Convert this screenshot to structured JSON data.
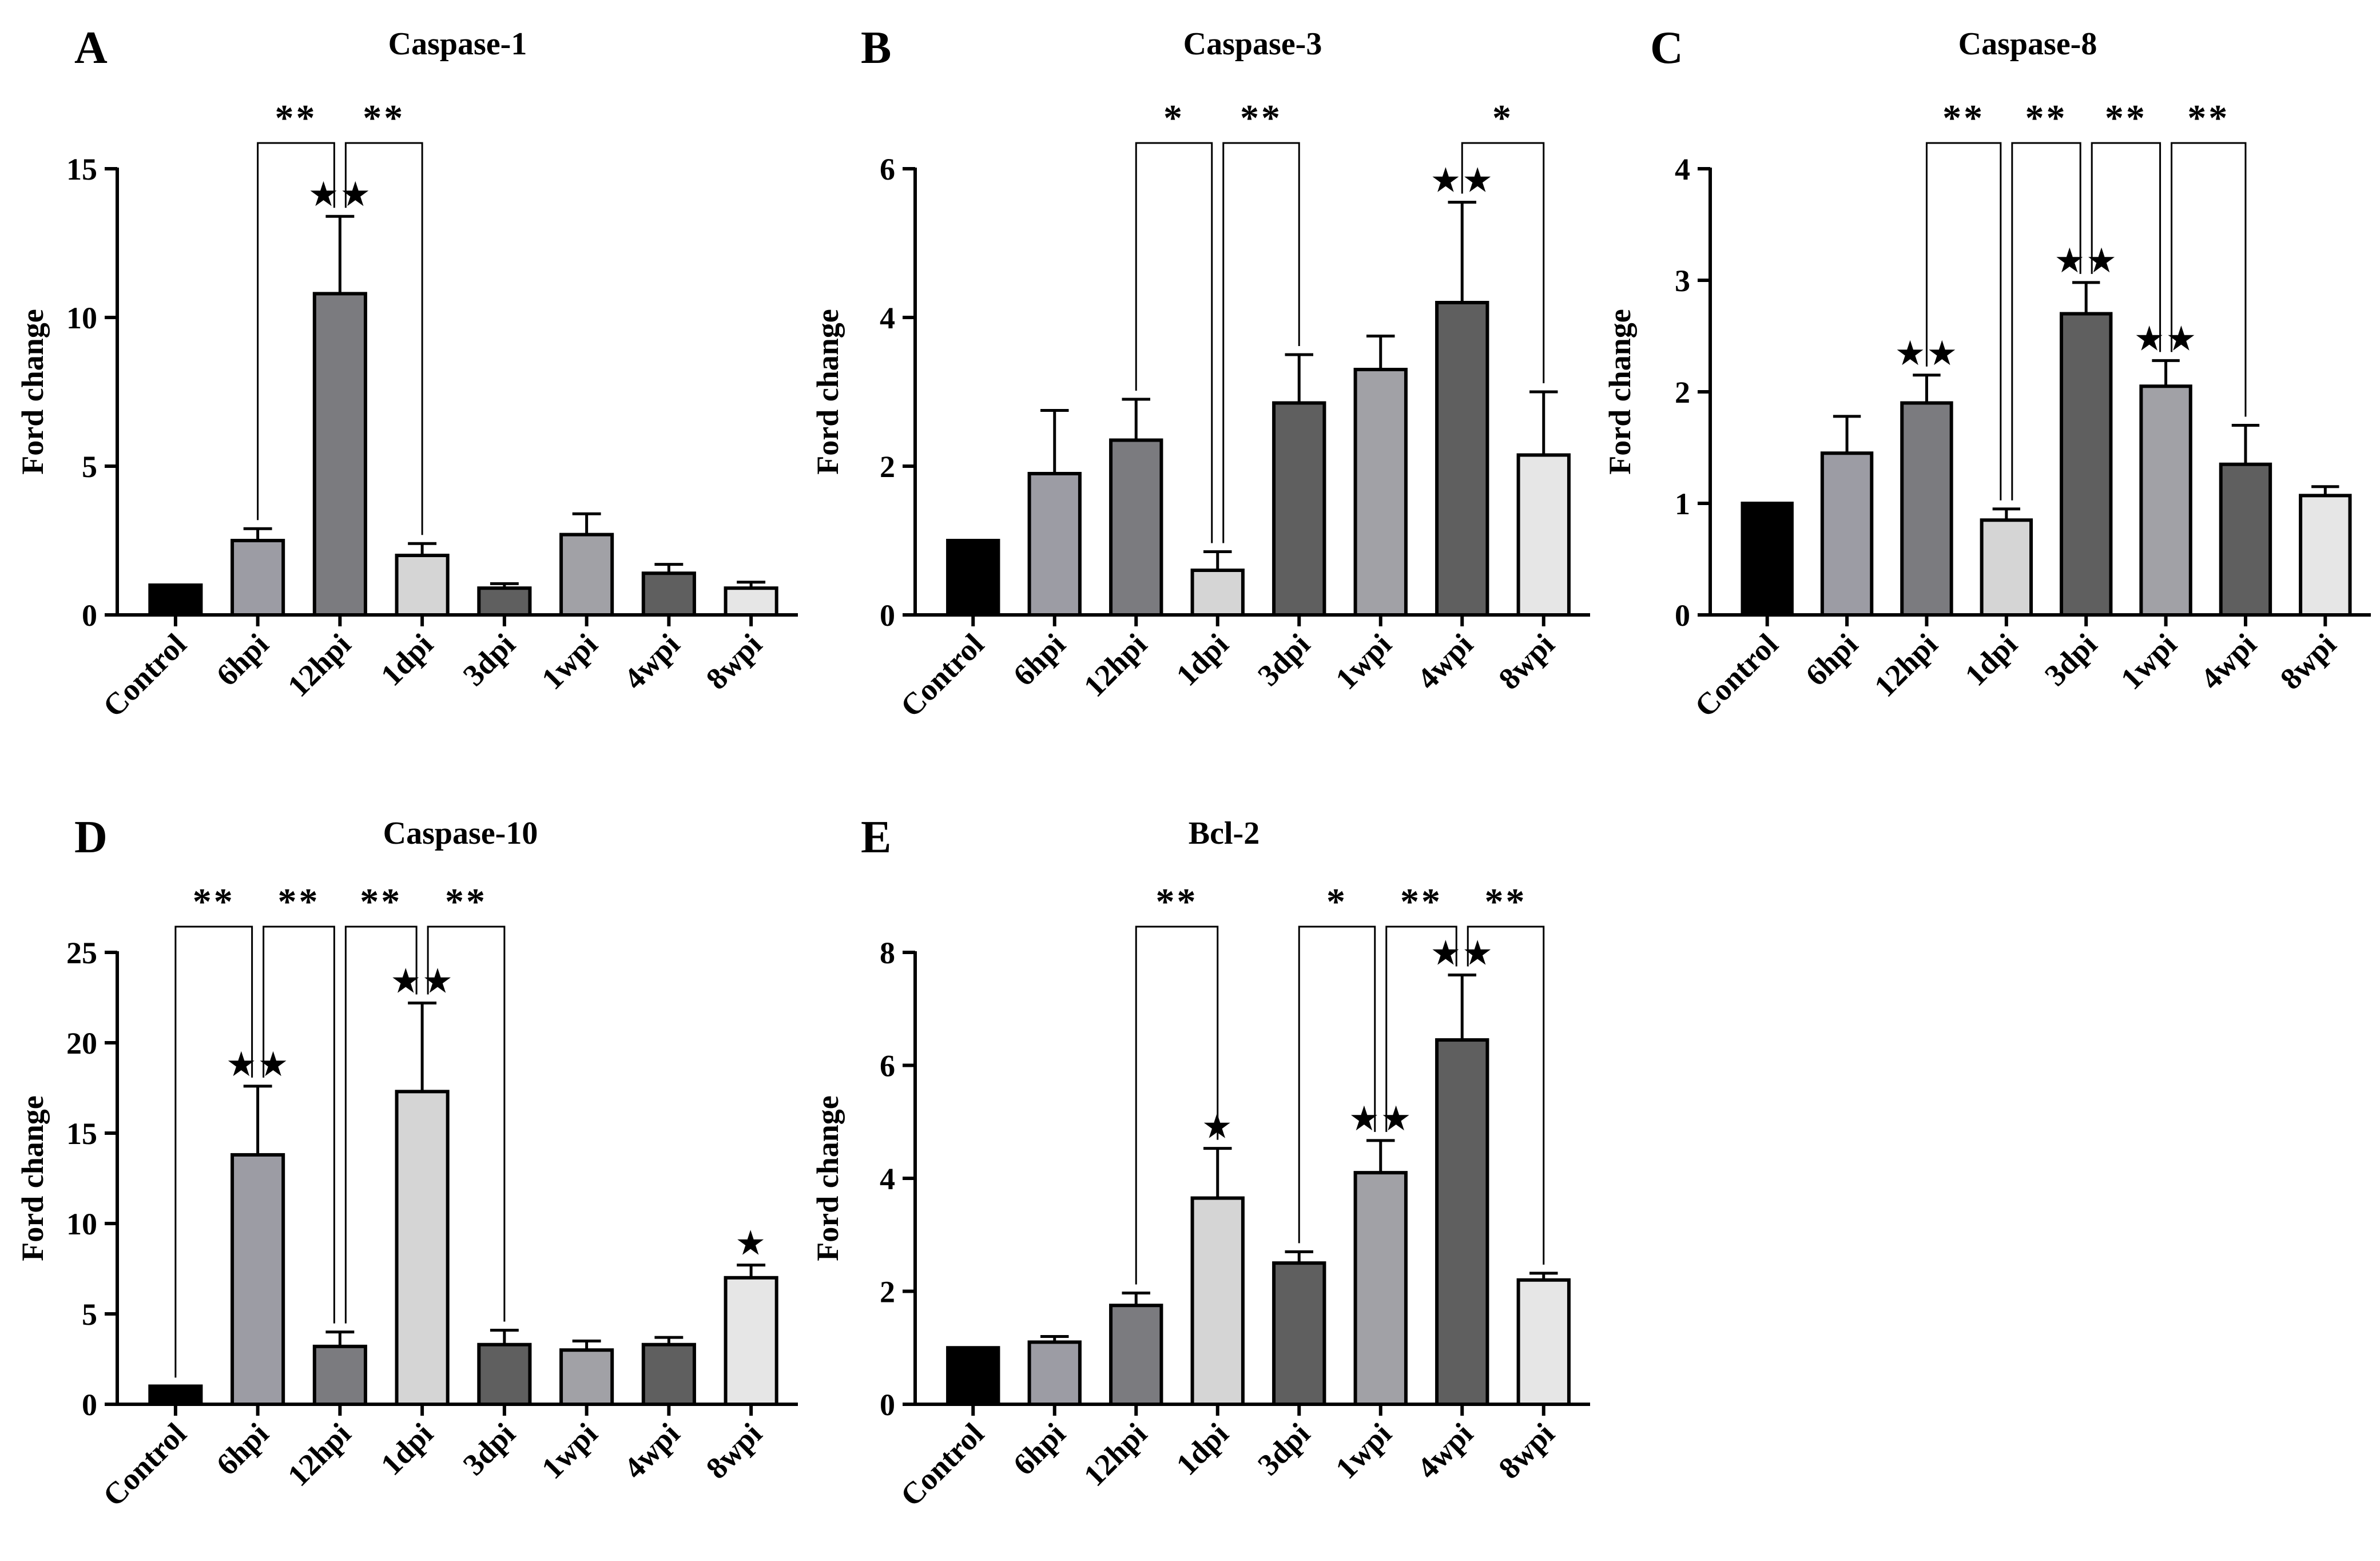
{
  "chart_data": [
    {
      "type": "bar",
      "letter": "A",
      "title": "Caspase-1",
      "ylabel": "Ford change",
      "xlabel": "",
      "categories": [
        "Control",
        "6hpi",
        "12hpi",
        "1dpi",
        "3dpi",
        "1wpi",
        "4wpi",
        "8wpi"
      ],
      "values": [
        1.0,
        2.5,
        10.8,
        2.0,
        0.9,
        2.7,
        1.4,
        0.9
      ],
      "errors": [
        0,
        0.4,
        2.6,
        0.4,
        0.15,
        0.7,
        0.3,
        0.2
      ],
      "bar_colors": [
        "#000000",
        "#9c9ca4",
        "#7b7b7f",
        "#d5d5d5",
        "#5f5f5f",
        "#a1a1a6",
        "#5f5f5f",
        "#e6e6e6"
      ],
      "ylim": [
        0,
        15
      ],
      "yticks": [
        "0",
        "5",
        "10",
        "15"
      ],
      "annotations": [
        {
          "index": 2,
          "text": "★★"
        }
      ],
      "comparisons": [
        {
          "from": 1,
          "to": 2,
          "label": "**"
        },
        {
          "from": 2,
          "to": 3,
          "label": "**"
        }
      ]
    },
    {
      "type": "bar",
      "letter": "B",
      "title": "Caspase-3",
      "ylabel": "Ford change",
      "xlabel": "",
      "categories": [
        "Control",
        "6hpi",
        "12hpi",
        "1dpi",
        "3dpi",
        "1wpi",
        "4wpi",
        "8wpi"
      ],
      "values": [
        1.0,
        1.9,
        2.35,
        0.6,
        2.85,
        3.3,
        4.2,
        2.15
      ],
      "errors": [
        0,
        0.85,
        0.55,
        0.25,
        0.65,
        0.45,
        1.35,
        0.85
      ],
      "bar_colors": [
        "#000000",
        "#9c9ca4",
        "#7b7b7f",
        "#d5d5d5",
        "#5f5f5f",
        "#a1a1a6",
        "#5f5f5f",
        "#e6e6e6"
      ],
      "ylim": [
        0,
        6
      ],
      "yticks": [
        "0",
        "2",
        "4",
        "6"
      ],
      "annotations": [
        {
          "index": 6,
          "text": "★★"
        }
      ],
      "comparisons": [
        {
          "from": 2,
          "to": 3,
          "label": "*"
        },
        {
          "from": 3,
          "to": 4,
          "label": "**"
        },
        {
          "from": 6,
          "to": 7,
          "label": "*"
        }
      ]
    },
    {
      "type": "bar",
      "letter": "C",
      "title": "Caspase-8",
      "ylabel": "Ford change",
      "xlabel": "",
      "categories": [
        "Control",
        "6hpi",
        "12hpi",
        "1dpi",
        "3dpi",
        "1wpi",
        "4wpi",
        "8wpi"
      ],
      "values": [
        1.0,
        1.45,
        1.9,
        0.85,
        2.7,
        2.05,
        1.35,
        1.07
      ],
      "errors": [
        0,
        0.33,
        0.25,
        0.1,
        0.28,
        0.23,
        0.35,
        0.08
      ],
      "bar_colors": [
        "#000000",
        "#9c9ca4",
        "#7b7b7f",
        "#d5d5d5",
        "#5f5f5f",
        "#a1a1a6",
        "#5f5f5f",
        "#e6e6e6"
      ],
      "ylim": [
        0,
        4
      ],
      "yticks": [
        "0",
        "1",
        "2",
        "3",
        "4"
      ],
      "annotations": [
        {
          "index": 2,
          "text": "★★"
        },
        {
          "index": 4,
          "text": "★★"
        },
        {
          "index": 5,
          "text": "★★"
        }
      ],
      "comparisons": [
        {
          "from": 2,
          "to": 3,
          "label": "**"
        },
        {
          "from": 3,
          "to": 4,
          "label": "**"
        },
        {
          "from": 4,
          "to": 5,
          "label": "**"
        },
        {
          "from": 5,
          "to": 6,
          "label": "**"
        }
      ]
    },
    {
      "type": "bar",
      "letter": "D",
      "title": "Caspase-10",
      "ylabel": "Ford change",
      "xlabel": "",
      "categories": [
        "Control",
        "6hpi",
        "12hpi",
        "1dpi",
        "3dpi",
        "1wpi",
        "4wpi",
        "8wpi"
      ],
      "values": [
        1.0,
        13.8,
        3.2,
        17.3,
        3.3,
        3.0,
        3.3,
        7.0
      ],
      "errors": [
        0,
        3.8,
        0.8,
        4.9,
        0.8,
        0.5,
        0.4,
        0.7
      ],
      "bar_colors": [
        "#000000",
        "#9c9ca4",
        "#7b7b7f",
        "#d5d5d5",
        "#5f5f5f",
        "#a1a1a6",
        "#5f5f5f",
        "#e6e6e6"
      ],
      "ylim": [
        0,
        25
      ],
      "yticks": [
        "0",
        "5",
        "10",
        "15",
        "20",
        "25"
      ],
      "annotations": [
        {
          "index": 1,
          "text": "★★"
        },
        {
          "index": 3,
          "text": "★★"
        },
        {
          "index": 7,
          "text": "★"
        }
      ],
      "comparisons": [
        {
          "from": 0,
          "to": 1,
          "label": "**"
        },
        {
          "from": 1,
          "to": 2,
          "label": "**"
        },
        {
          "from": 2,
          "to": 3,
          "label": "**"
        },
        {
          "from": 3,
          "to": 4,
          "label": "**"
        }
      ]
    },
    {
      "type": "bar",
      "letter": "E",
      "title": "Bcl-2",
      "ylabel": "Ford change",
      "xlabel": "",
      "categories": [
        "Control",
        "6hpi",
        "12hpi",
        "1dpi",
        "3dpi",
        "1wpi",
        "4wpi",
        "8wpi"
      ],
      "values": [
        1.0,
        1.1,
        1.75,
        3.65,
        2.5,
        4.1,
        6.45,
        2.2
      ],
      "errors": [
        0,
        0.1,
        0.22,
        0.88,
        0.2,
        0.57,
        1.15,
        0.12
      ],
      "bar_colors": [
        "#000000",
        "#9c9ca4",
        "#7b7b7f",
        "#d5d5d5",
        "#5f5f5f",
        "#a1a1a6",
        "#5f5f5f",
        "#e6e6e6"
      ],
      "ylim": [
        0,
        8
      ],
      "yticks": [
        "0",
        "2",
        "4",
        "6",
        "8"
      ],
      "annotations": [
        {
          "index": 3,
          "text": "★"
        },
        {
          "index": 5,
          "text": "★★"
        },
        {
          "index": 6,
          "text": "★★"
        }
      ],
      "comparisons": [
        {
          "from": 2,
          "to": 3,
          "label": "**"
        },
        {
          "from": 4,
          "to": 5,
          "label": "*"
        },
        {
          "from": 5,
          "to": 6,
          "label": "**"
        },
        {
          "from": 6,
          "to": 7,
          "label": "**"
        }
      ]
    }
  ]
}
